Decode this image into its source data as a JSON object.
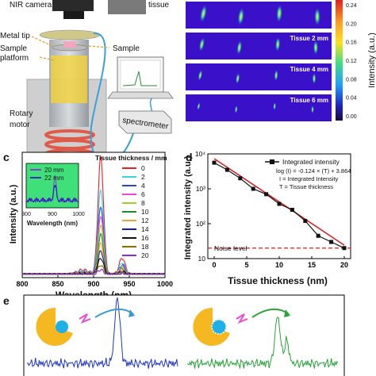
{
  "panel_a": {
    "labels": {
      "camera": "NIR camera",
      "tissue": "tissue",
      "metal_tip": "Metal tip",
      "sample": "Sample",
      "sample_platform": "Sample platform",
      "rotary_motor": "Rotary motor",
      "spectrometer": "spectrometer"
    }
  },
  "panel_b": {
    "rows": [
      "",
      "Tissue 2 mm",
      "Tissue 4 mm",
      "Tissue 6 mm"
    ],
    "colorbar_label": "Intensity (a.u.)",
    "colorbar_ticks": [
      "0.24",
      "0.20",
      "0.16",
      "0.12",
      "0.08",
      "0.04",
      "0.00"
    ]
  },
  "chart_data": [
    {
      "panel": "c",
      "type": "line",
      "xlabel": "Wavelength (nm)",
      "ylabel": "Intensity (a.u.)",
      "xlim": [
        800,
        1000
      ],
      "xticks": [
        800,
        850,
        900,
        950,
        1000
      ],
      "legend_title": "Tissue thickness / mm",
      "peak_center": 910,
      "series": [
        {
          "name": "0",
          "color": "#e8202a",
          "peak": 1.0
        },
        {
          "name": "2",
          "color": "#39d3e6",
          "peak": 0.72
        },
        {
          "name": "4",
          "color": "#2946c9",
          "peak": 0.58
        },
        {
          "name": "6",
          "color": "#e84ad8",
          "peak": 0.5
        },
        {
          "name": "8",
          "color": "#9fd12a",
          "peak": 0.42
        },
        {
          "name": "10",
          "color": "#1a8a2e",
          "peak": 0.34
        },
        {
          "name": "12",
          "color": "#f0a23a",
          "peak": 0.26
        },
        {
          "name": "14",
          "color": "#1b1b8c",
          "peak": 0.2
        },
        {
          "name": "16",
          "color": "#111111",
          "peak": 0.14
        },
        {
          "name": "18",
          "color": "#8a6d00",
          "peak": 0.08
        },
        {
          "name": "20",
          "color": "#8e2bd8",
          "peak": 0.04
        }
      ],
      "inset": {
        "xlim": [
          800,
          1000
        ],
        "xticks": [
          800,
          900,
          1000
        ],
        "series": [
          {
            "name": "20 mm",
            "color": "#8e2bd8"
          },
          {
            "name": "22 mm",
            "color": "#1a1ab8"
          }
        ]
      }
    },
    {
      "panel": "d",
      "type": "line",
      "xlabel": "Tissue thickness (nm)",
      "ylabel": "Integrated intensity (a.u.)",
      "xlim": [
        0,
        20
      ],
      "ylim": [
        10,
        10000
      ],
      "yscale": "log",
      "xticks": [
        0,
        5,
        10,
        15,
        20
      ],
      "yticks": [
        10,
        100,
        1000,
        10000
      ],
      "yticklabels": [
        "10",
        "10²",
        "10³",
        "10⁴"
      ],
      "series": [
        {
          "name": "Integrated intensity",
          "color": "#111111",
          "x": [
            0,
            2,
            4,
            6,
            8,
            10,
            12,
            14,
            16,
            18,
            20
          ],
          "y": [
            5600,
            3500,
            2000,
            1000,
            700,
            370,
            250,
            120,
            45,
            30,
            20
          ]
        }
      ],
      "fit": {
        "color": "#d42020",
        "slope": -0.124,
        "intercept": 3.864
      },
      "fit_text": [
        "log (I) = -0.124 × (T) + 3.864",
        "I = Integrated Intensity",
        "T = Tissue thickness"
      ],
      "noise_level": {
        "value": 20,
        "label": "Noise level",
        "color": "#d42020"
      }
    },
    {
      "panel": "e",
      "type": "line",
      "series": [
        {
          "color": "#1f36c9",
          "peak_center": 0.6,
          "peak_height": 1.0
        },
        {
          "color": "#2aa33a",
          "peak_center": 0.6,
          "peak_height": 0.72
        }
      ]
    }
  ],
  "panel_letters": {
    "c": "c",
    "d": "d",
    "e": "e"
  }
}
